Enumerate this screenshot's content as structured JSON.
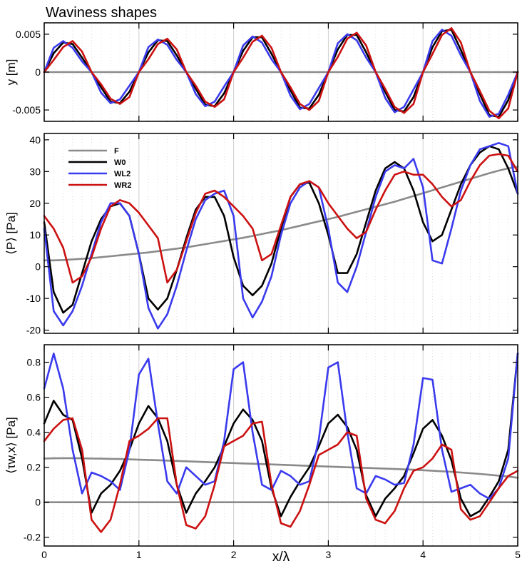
{
  "figure_title": "Waviness shapes",
  "xlabel": "x/λ",
  "colors": {
    "F": "#8a8a8a",
    "W0": "#000000",
    "WL2": "#3a3aee",
    "WR2": "#cc1111"
  },
  "chart_data": [
    {
      "type": "line",
      "id": "shape",
      "title": "Waviness shapes",
      "ylabel": "y [m]",
      "xlim": [
        0,
        5
      ],
      "ylim": [
        -0.0065,
        0.0065
      ],
      "xticks": [
        0,
        1,
        2,
        3,
        4,
        5
      ],
      "yticks": [
        -0.005,
        0,
        0.005
      ],
      "ytick_labels": [
        "-0.005",
        "0",
        "0.005"
      ],
      "x": [
        0,
        0.1,
        0.2,
        0.3,
        0.4,
        0.5,
        0.6,
        0.7,
        0.8,
        0.9,
        1.0,
        1.1,
        1.2,
        1.3,
        1.4,
        1.5,
        1.6,
        1.7,
        1.8,
        1.9,
        2.0,
        2.1,
        2.2,
        2.3,
        2.4,
        2.5,
        2.6,
        2.7,
        2.8,
        2.9,
        3.0,
        3.1,
        3.2,
        3.3,
        3.4,
        3.5,
        3.6,
        3.7,
        3.8,
        3.9,
        4.0,
        4.1,
        4.2,
        4.3,
        4.4,
        4.5,
        4.6,
        4.7,
        4.8,
        4.9,
        5.0
      ],
      "series": [
        {
          "name": "F",
          "values": [
            0,
            0,
            0,
            0,
            0,
            0,
            0,
            0,
            0,
            0,
            0,
            0,
            0,
            0,
            0,
            0,
            0,
            0,
            0,
            0,
            0,
            0,
            0,
            0,
            0,
            0,
            0,
            0,
            0,
            0,
            0,
            0,
            0,
            0,
            0,
            0,
            0,
            0,
            0,
            0,
            0,
            0,
            0,
            0,
            0,
            0,
            0,
            0,
            0,
            0,
            0
          ]
        },
        {
          "name": "W0",
          "values": [
            0,
            0.0025,
            0.0039,
            0.0037,
            0.0019,
            0,
            -0.002,
            -0.0039,
            -0.0041,
            -0.0026,
            0,
            0.0026,
            0.0042,
            0.0041,
            0.0022,
            0,
            -0.0022,
            -0.0043,
            -0.0045,
            -0.0028,
            0,
            0.0028,
            0.0046,
            0.0046,
            0.0024,
            0,
            -0.0024,
            -0.0047,
            -0.0048,
            -0.003,
            0,
            0.003,
            0.0049,
            0.0049,
            0.0026,
            0,
            -0.0026,
            -0.005,
            -0.0052,
            -0.0033,
            0,
            0.0033,
            0.0054,
            0.0056,
            0.0029,
            0,
            -0.0029,
            -0.0057,
            -0.0059,
            -0.0037,
            0
          ]
        },
        {
          "name": "WL2",
          "values": [
            0,
            0.0032,
            0.0041,
            0.0032,
            0.0014,
            0,
            -0.0027,
            -0.0041,
            -0.0036,
            -0.0018,
            0,
            0.0033,
            0.0043,
            0.0036,
            0.0016,
            0,
            -0.0029,
            -0.0045,
            -0.0039,
            -0.0019,
            0,
            0.0035,
            0.0047,
            0.0039,
            0.0017,
            0,
            -0.0031,
            -0.0049,
            -0.0042,
            -0.0021,
            0,
            0.0038,
            0.005,
            0.0042,
            0.0019,
            0,
            -0.0034,
            -0.0053,
            -0.0046,
            -0.0023,
            0,
            0.0041,
            0.0056,
            0.0048,
            0.0022,
            0,
            -0.0038,
            -0.0059,
            -0.0055,
            -0.003,
            0
          ]
        },
        {
          "name": "WR2",
          "values": [
            0,
            0.0016,
            0.0033,
            0.0041,
            0.0027,
            0,
            -0.0016,
            -0.0035,
            -0.0042,
            -0.0033,
            0,
            0.0017,
            0.0037,
            0.0044,
            0.003,
            0,
            -0.0018,
            -0.0039,
            -0.0046,
            -0.0036,
            0,
            0.0019,
            0.004,
            0.0048,
            0.0032,
            0,
            -0.002,
            -0.0042,
            -0.005,
            -0.0038,
            0,
            0.002,
            0.0044,
            0.0052,
            0.0035,
            0,
            -0.0022,
            -0.0046,
            -0.0054,
            -0.0042,
            0,
            0.0024,
            0.0049,
            0.0058,
            0.0039,
            0,
            -0.0025,
            -0.0051,
            -0.0061,
            -0.0048,
            0
          ]
        }
      ]
    },
    {
      "type": "line",
      "id": "pressure",
      "ylabel": "⟨P⟩ [Pa]",
      "xlim": [
        0,
        5
      ],
      "ylim": [
        -21,
        42
      ],
      "xticks": [
        0,
        1,
        2,
        3,
        4,
        5
      ],
      "yticks": [
        -20,
        -10,
        0,
        10,
        20,
        30,
        40
      ],
      "legend": {
        "position": "top-left",
        "entries": [
          "F",
          "W0",
          "WL2",
          "WR2"
        ]
      },
      "x": [
        0,
        0.1,
        0.2,
        0.3,
        0.4,
        0.5,
        0.6,
        0.7,
        0.8,
        0.9,
        1.0,
        1.1,
        1.2,
        1.3,
        1.4,
        1.5,
        1.6,
        1.7,
        1.8,
        1.9,
        2.0,
        2.1,
        2.2,
        2.3,
        2.4,
        2.5,
        2.6,
        2.7,
        2.8,
        2.9,
        3.0,
        3.1,
        3.2,
        3.3,
        3.4,
        3.5,
        3.6,
        3.7,
        3.8,
        3.9,
        4.0,
        4.1,
        4.2,
        4.3,
        4.4,
        4.5,
        4.6,
        4.7,
        4.8,
        4.9,
        5.0
      ],
      "series": [
        {
          "name": "F",
          "values": [
            2,
            2,
            2.1,
            2.3,
            2.5,
            2.7,
            3,
            3.3,
            3.6,
            3.9,
            4.2,
            4.5,
            4.9,
            5.3,
            5.7,
            6.1,
            6.6,
            7.1,
            7.6,
            8.1,
            8.6,
            9.1,
            9.7,
            10.3,
            10.9,
            11.5,
            12.2,
            12.9,
            13.6,
            14.3,
            15,
            15.7,
            16.5,
            17.3,
            18.1,
            18.9,
            19.7,
            20.5,
            21.4,
            22.3,
            23.2,
            24.1,
            25,
            25.9,
            26.8,
            27.7,
            28.6,
            29.5,
            30.3,
            31,
            31.5
          ]
        },
        {
          "name": "W0",
          "values": [
            14,
            -8,
            -14.5,
            -12,
            -2,
            8,
            15,
            19,
            20,
            16,
            4,
            -10,
            -13.5,
            -10,
            -1,
            9,
            18,
            22,
            22,
            16,
            3,
            -6,
            -9,
            -6,
            1,
            12,
            22,
            26,
            26.5,
            20,
            10,
            -2,
            -2,
            4,
            14,
            24,
            31,
            33,
            31,
            24,
            14,
            8,
            10,
            18,
            26,
            32,
            36,
            38,
            37,
            31,
            23
          ]
        },
        {
          "name": "WL2",
          "values": [
            12,
            -14,
            -18.5,
            -14,
            -6,
            4,
            14,
            20,
            20,
            16,
            4,
            -13,
            -19.5,
            -15,
            -6,
            5,
            15,
            21,
            23,
            24,
            16,
            -10,
            -16,
            -11,
            -3,
            10,
            20,
            25,
            27,
            25,
            12,
            -5,
            -8,
            0,
            11,
            22,
            30,
            32,
            31,
            34,
            25,
            2,
            1,
            12,
            24,
            32,
            37,
            38,
            39,
            38,
            23
          ]
        },
        {
          "name": "WR2",
          "values": [
            16,
            12,
            6,
            -5,
            -3,
            3,
            12,
            19,
            21,
            20,
            17,
            13,
            9,
            -5,
            -1,
            8,
            17,
            23,
            24,
            22,
            19,
            16,
            12,
            2,
            4,
            13,
            22,
            26,
            27,
            25,
            20,
            16,
            12,
            9,
            11,
            18,
            24,
            29,
            30,
            29,
            29,
            26,
            22,
            19,
            21,
            27,
            32,
            35,
            35.5,
            35,
            30
          ]
        }
      ]
    },
    {
      "type": "line",
      "id": "shear",
      "ylabel": "⟨τw,x⟩ [Pa]",
      "xlim": [
        0,
        5
      ],
      "ylim": [
        -0.25,
        0.9
      ],
      "xticks": [
        0,
        1,
        2,
        3,
        4,
        5
      ],
      "yticks": [
        -0.2,
        0,
        0.2,
        0.4,
        0.6,
        0.8
      ],
      "ytick_labels": [
        "-0.2",
        "0",
        "0.2",
        "0.4",
        "0.6",
        "0.8"
      ],
      "x": [
        0,
        0.1,
        0.2,
        0.3,
        0.4,
        0.5,
        0.6,
        0.7,
        0.8,
        0.9,
        1.0,
        1.1,
        1.2,
        1.3,
        1.4,
        1.5,
        1.6,
        1.7,
        1.8,
        1.9,
        2.0,
        2.1,
        2.2,
        2.3,
        2.4,
        2.5,
        2.6,
        2.7,
        2.8,
        2.9,
        3.0,
        3.1,
        3.2,
        3.3,
        3.4,
        3.5,
        3.6,
        3.7,
        3.8,
        3.9,
        4.0,
        4.1,
        4.2,
        4.3,
        4.4,
        4.5,
        4.6,
        4.7,
        4.8,
        4.9,
        5.0
      ],
      "series": [
        {
          "name": "F",
          "values": [
            0.25,
            0.251,
            0.252,
            0.252,
            0.251,
            0.25,
            0.249,
            0.248,
            0.247,
            0.245,
            0.243,
            0.242,
            0.24,
            0.238,
            0.236,
            0.234,
            0.232,
            0.23,
            0.228,
            0.226,
            0.224,
            0.222,
            0.22,
            0.218,
            0.216,
            0.214,
            0.212,
            0.21,
            0.208,
            0.206,
            0.204,
            0.202,
            0.2,
            0.198,
            0.196,
            0.194,
            0.192,
            0.19,
            0.188,
            0.186,
            0.183,
            0.18,
            0.177,
            0.174,
            0.17,
            0.166,
            0.162,
            0.157,
            0.152,
            0.147,
            0.14
          ]
        },
        {
          "name": "F",
          "values": [
            0,
            0,
            0,
            0,
            0,
            0,
            0,
            0,
            0,
            0,
            0,
            0,
            0,
            0,
            0,
            0,
            0,
            0,
            0,
            0,
            0,
            0,
            0,
            0,
            0,
            0,
            0,
            0,
            0,
            0,
            0,
            0,
            0,
            0,
            0,
            0,
            0,
            0,
            0,
            0,
            0,
            0,
            0,
            0,
            0,
            0,
            0,
            0,
            0,
            0,
            0
          ]
        },
        {
          "name": "W0",
          "values": [
            0.45,
            0.58,
            0.5,
            0.47,
            0.25,
            -0.06,
            0.05,
            0.1,
            0.18,
            0.3,
            0.45,
            0.55,
            0.48,
            0.35,
            0.1,
            -0.06,
            0.05,
            0.12,
            0.2,
            0.32,
            0.45,
            0.53,
            0.47,
            0.35,
            0.08,
            -0.08,
            0.03,
            0.12,
            0.2,
            0.32,
            0.45,
            0.5,
            0.43,
            0.3,
            0.04,
            -0.08,
            0.02,
            0.08,
            0.15,
            0.28,
            0.42,
            0.47,
            0.38,
            0.24,
            0.02,
            -0.08,
            -0.05,
            0.03,
            0.12,
            0.3,
            0.85
          ]
        },
        {
          "name": "WL2",
          "values": [
            0.65,
            0.85,
            0.65,
            0.3,
            0.05,
            0.17,
            0.15,
            0.12,
            0.07,
            0.3,
            0.73,
            0.82,
            0.45,
            0.12,
            0.05,
            0.2,
            0.15,
            0.1,
            0.12,
            0.35,
            0.76,
            0.8,
            0.4,
            0.1,
            0.07,
            0.18,
            0.15,
            0.1,
            0.12,
            0.36,
            0.77,
            0.8,
            0.4,
            0.08,
            0.05,
            0.15,
            0.13,
            0.1,
            0.11,
            0.33,
            0.71,
            0.7,
            0.3,
            0.06,
            0.08,
            0.1,
            0.05,
            0.02,
            0.08,
            0.25,
            0.85
          ]
        },
        {
          "name": "WR2",
          "values": [
            0.35,
            0.42,
            0.47,
            0.48,
            0.3,
            -0.1,
            -0.17,
            -0.1,
            0.1,
            0.35,
            0.38,
            0.42,
            0.48,
            0.48,
            0.1,
            -0.13,
            -0.15,
            -0.08,
            0.1,
            0.32,
            0.35,
            0.38,
            0.45,
            0.46,
            0.1,
            -0.12,
            -0.14,
            -0.05,
            0.1,
            0.27,
            0.3,
            0.33,
            0.4,
            0.38,
            0.02,
            -0.1,
            -0.12,
            -0.05,
            0.08,
            0.18,
            0.2,
            0.25,
            0.33,
            0.3,
            -0.04,
            -0.1,
            -0.08,
            0.0,
            0.08,
            0.15,
            0.18
          ]
        }
      ]
    }
  ]
}
